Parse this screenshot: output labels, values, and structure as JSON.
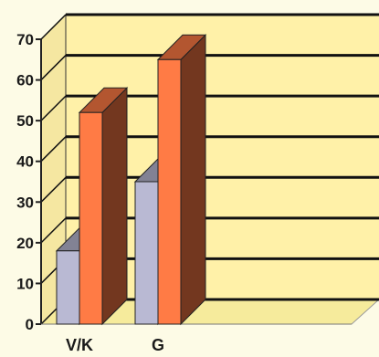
{
  "chart_data": {
    "type": "bar",
    "style": "3d-column",
    "categories": [
      "V/K",
      "G"
    ],
    "series": [
      {
        "values": [
          18,
          35
        ],
        "color": "#b9b9d3"
      },
      {
        "values": [
          52,
          65
        ],
        "color": "#ff7b45"
      }
    ],
    "ylim": [
      0,
      70
    ],
    "yticks": [
      "0",
      "10",
      "20",
      "30",
      "40",
      "50",
      "60",
      "70"
    ],
    "grid": true,
    "legend": "none",
    "colors": {
      "background": "#fdfbe6",
      "wall": "#fff1a8",
      "floor": "#f6eb9c",
      "gridline": "#111111"
    }
  }
}
